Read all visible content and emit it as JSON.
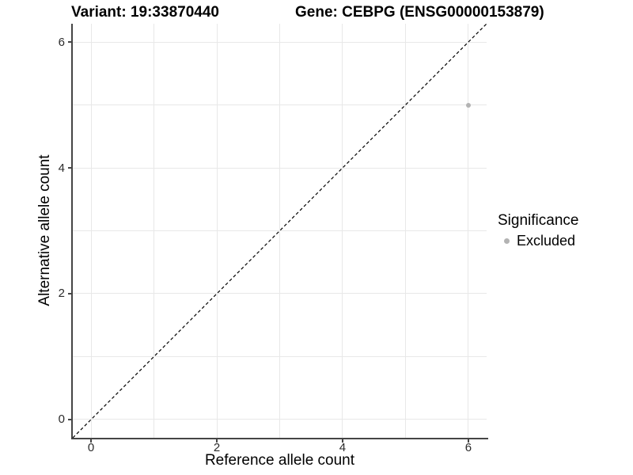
{
  "header": {
    "title_left": "Variant: 19:33870440",
    "title_right": "Gene: CEBPG (ENSG00000153879)"
  },
  "chart_data": {
    "type": "scatter",
    "title_left": "Variant: 19:33870440",
    "title_right": "Gene: CEBPG (ENSG00000153879)",
    "xlabel": "Reference allele count",
    "ylabel": "Alternative allele count",
    "xlim": [
      -0.29,
      6.29
    ],
    "ylim": [
      -0.29,
      6.29
    ],
    "xticks": [
      0,
      2,
      4,
      6
    ],
    "yticks": [
      0,
      2,
      4,
      6
    ],
    "grid_positions": [
      0,
      1,
      2,
      3,
      4,
      5,
      6
    ],
    "grid": true,
    "reference_line": {
      "type": "identity",
      "slope": 1,
      "intercept": 0,
      "style": "dashed",
      "color": "#000000"
    },
    "series": [
      {
        "name": "Excluded",
        "color": "#b3b3b3",
        "points": [
          {
            "x": 6,
            "y": 5
          }
        ]
      }
    ],
    "legend": {
      "title": "Significance",
      "position": "right",
      "entries": [
        {
          "label": "Excluded",
          "color": "#b3b3b3"
        }
      ]
    }
  },
  "colors": {
    "background": "#ffffff",
    "gridline": "#e8e8e8",
    "axis_line": "#454545",
    "tick_label": "#2b2b2b",
    "point": "#b3b3b3"
  }
}
